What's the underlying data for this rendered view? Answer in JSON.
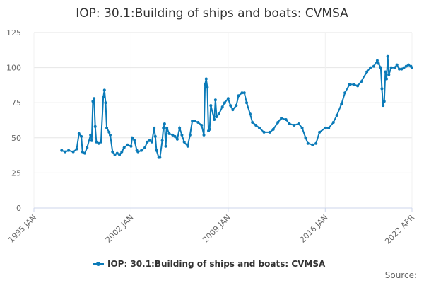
{
  "chart_data": {
    "type": "line",
    "title": "IOP: 30.1:Building of ships and boats: CVMSA",
    "source": "Source:",
    "x": [
      "1997 JAN",
      "1997 APR",
      "1997 JUL",
      "1997 NOV",
      "1998 FEB",
      "1998 APR",
      "1998 JUN",
      "1998 JUL",
      "1998 SEP",
      "1998 NOV",
      "1999 FEB",
      "1999 MAR",
      "1999 APR",
      "1999 MAY",
      "1999 JUN",
      "1999 JUL",
      "1999 SEP",
      "1999 NOV",
      "2000 JAN",
      "2000 FEB",
      "2000 MAR",
      "2000 APR",
      "2000 JUN",
      "2000 JUL",
      "2000 SEP",
      "2000 NOV",
      "2001 JAN",
      "2001 MAR",
      "2001 MAY",
      "2001 JUL",
      "2001 OCT",
      "2002 JAN",
      "2002 FEB",
      "2002 APR",
      "2002 JUN",
      "2002 JUL",
      "2002 OCT",
      "2003 JAN",
      "2003 MAR",
      "2003 MAY",
      "2003 JUL",
      "2003 SEP",
      "2003 OCT",
      "2003 NOV",
      "2004 JAN",
      "2004 FEB",
      "2004 APR",
      "2004 MAY",
      "2004 JUN",
      "2004 JUL",
      "2004 AUG",
      "2004 OCT",
      "2005 JAN",
      "2005 MAR",
      "2005 MAY",
      "2005 JUL",
      "2005 SEP",
      "2005 NOV",
      "2006 FEB",
      "2006 APR",
      "2006 JUN",
      "2006 AUG",
      "2006 NOV",
      "2007 FEB",
      "2007 APR",
      "2007 MAY",
      "2007 JUN",
      "2007 JUL",
      "2007 AUG",
      "2007 SEP",
      "2007 OCT",
      "2008 JAN",
      "2008 FEB",
      "2008 MAR",
      "2008 MAY",
      "2008 AUG",
      "2008 OCT",
      "2009 JAN",
      "2009 MAR",
      "2009 MAY",
      "2009 AUG",
      "2009 OCT",
      "2010 JAN",
      "2010 MAR",
      "2010 MAY",
      "2010 AUG",
      "2010 OCT",
      "2011 JAN",
      "2011 APR",
      "2011 AUG",
      "2012 JAN",
      "2012 APR",
      "2012 AUG",
      "2012 NOV",
      "2013 MAR",
      "2013 JUN",
      "2013 OCT",
      "2014 FEB",
      "2014 MAY",
      "2014 AUG",
      "2014 OCT",
      "2015 FEB",
      "2015 MAY",
      "2015 AUG",
      "2016 JAN",
      "2016 APR",
      "2016 AUG",
      "2016 NOV",
      "2017 MAR",
      "2017 JUN",
      "2017 OCT",
      "2018 FEB",
      "2018 MAY",
      "2018 AUG",
      "2019 JAN",
      "2019 APR",
      "2019 JUL",
      "2019 OCT",
      "2019 NOV",
      "2020 JAN",
      "2020 FEB",
      "2020 MAR",
      "2020 APR",
      "2020 MAY",
      "2020 JUN",
      "2020 JUL",
      "2020 AUG",
      "2020 OCT",
      "2021 JAN",
      "2021 MAR",
      "2021 MAY",
      "2021 JUL",
      "2021 SEP",
      "2021 NOV",
      "2022 JAN",
      "2022 MAR",
      "2022 APR"
    ],
    "series": [
      {
        "name": "IOP: 30.1:Building of ships and boats: CVMSA",
        "color": "#0a7ab8",
        "values": [
          41,
          40,
          41,
          40,
          42,
          53,
          51,
          40,
          39,
          43,
          52,
          48,
          76,
          78,
          58,
          47,
          46,
          47,
          79,
          84,
          75,
          57,
          54,
          52,
          40,
          38,
          39,
          38,
          40,
          43,
          45,
          44,
          50,
          48,
          41,
          40,
          41,
          43,
          47,
          48,
          47,
          57,
          51,
          41,
          36,
          36,
          48,
          57,
          60,
          44,
          57,
          53,
          52,
          51,
          49,
          57,
          52,
          47,
          44,
          52,
          62,
          62,
          61,
          59,
          52,
          88,
          92,
          86,
          55,
          56,
          73,
          63,
          77,
          65,
          67,
          72,
          75,
          78,
          73,
          70,
          73,
          80,
          82,
          82,
          75,
          67,
          61,
          59,
          57,
          54,
          54,
          56,
          61,
          64,
          63,
          60,
          59,
          60,
          57,
          50,
          46,
          45,
          46,
          54,
          57,
          57,
          61,
          66,
          74,
          82,
          88,
          88,
          87,
          90,
          97,
          100,
          101,
          105,
          103,
          100,
          85,
          73,
          76,
          97,
          92,
          108,
          95,
          100,
          100,
          102,
          99,
          99,
          100,
          101,
          102,
          101,
          100
        ]
      }
    ],
    "xlim": [
      "1995 JAN",
      "2022 APR"
    ],
    "xticks": [
      "1995 JAN",
      "2002 JAN",
      "2009 JAN",
      "2016 JAN",
      "2022 APR"
    ],
    "ylim": [
      0,
      125
    ],
    "yticks": [
      0,
      25,
      50,
      75,
      100,
      125
    ],
    "grid": true,
    "legend": "bottom"
  }
}
